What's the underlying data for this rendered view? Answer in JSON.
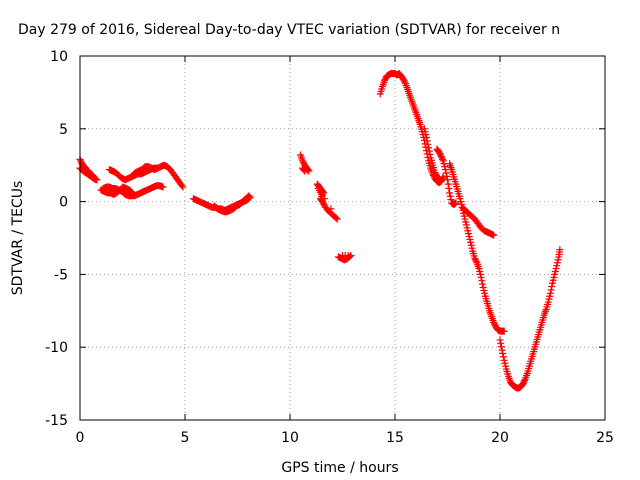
{
  "chart_data": {
    "type": "scatter",
    "title": "Day 279 of 2016, Sidereal Day-to-day VTEC variation (SDTVAR) for receiver n",
    "xlabel": "GPS time / hours",
    "ylabel": "SDTVAR / TECUs",
    "xlim": [
      0,
      25
    ],
    "ylim": [
      -15,
      10
    ],
    "xticks": [
      0,
      5,
      10,
      15,
      20,
      25
    ],
    "yticks": [
      -15,
      -10,
      -5,
      0,
      5,
      10
    ],
    "grid": true,
    "marker": "plus",
    "color": "#ff0000",
    "series": [
      {
        "segments": [
          [
            [
              0.0,
              2.9
            ],
            [
              0.1,
              2.6
            ],
            [
              0.2,
              2.4
            ],
            [
              0.3,
              2.2
            ],
            [
              0.4,
              2.1
            ],
            [
              0.5,
              1.9
            ],
            [
              0.6,
              1.8
            ],
            [
              0.7,
              1.6
            ],
            [
              0.8,
              1.5
            ]
          ],
          [
            [
              0.0,
              2.3
            ],
            [
              0.15,
              2.1
            ],
            [
              0.3,
              1.95
            ],
            [
              0.45,
              1.8
            ],
            [
              0.6,
              1.65
            ],
            [
              0.75,
              1.5
            ]
          ],
          [
            [
              1.0,
              0.8
            ],
            [
              1.15,
              0.7
            ],
            [
              1.3,
              0.6
            ],
            [
              1.45,
              0.6
            ],
            [
              1.6,
              0.5
            ],
            [
              1.75,
              0.6
            ],
            [
              1.9,
              0.8
            ],
            [
              2.05,
              1.0
            ],
            [
              2.2,
              0.9
            ],
            [
              2.35,
              0.8
            ],
            [
              2.5,
              0.6
            ]
          ],
          [
            [
              1.1,
              0.9
            ],
            [
              1.25,
              1.0
            ],
            [
              1.4,
              1.0
            ],
            [
              1.55,
              0.9
            ],
            [
              1.7,
              0.9
            ],
            [
              1.85,
              0.8
            ],
            [
              2.0,
              0.7
            ],
            [
              2.15,
              0.5
            ],
            [
              2.3,
              0.4
            ],
            [
              2.45,
              0.4
            ],
            [
              2.6,
              0.4
            ],
            [
              2.75,
              0.5
            ],
            [
              2.9,
              0.6
            ],
            [
              3.05,
              0.7
            ],
            [
              3.2,
              0.8
            ],
            [
              3.35,
              0.9
            ],
            [
              3.5,
              1.0
            ],
            [
              3.65,
              1.1
            ],
            [
              3.8,
              1.1
            ],
            [
              3.95,
              1.0
            ]
          ],
          [
            [
              1.4,
              2.2
            ],
            [
              1.55,
              2.1
            ],
            [
              1.7,
              2.0
            ],
            [
              1.85,
              1.8
            ],
            [
              2.0,
              1.6
            ],
            [
              2.15,
              1.5
            ],
            [
              2.3,
              1.6
            ],
            [
              2.45,
              1.7
            ],
            [
              2.6,
              1.8
            ],
            [
              2.75,
              1.9
            ],
            [
              2.9,
              1.9
            ],
            [
              3.05,
              2.0
            ],
            [
              3.2,
              2.1
            ],
            [
              3.35,
              2.2
            ],
            [
              3.5,
              2.3
            ],
            [
              3.65,
              2.3
            ]
          ],
          [
            [
              2.5,
              1.8
            ],
            [
              2.65,
              2.0
            ],
            [
              2.8,
              2.1
            ],
            [
              2.95,
              2.2
            ],
            [
              3.1,
              2.4
            ],
            [
              3.25,
              2.4
            ],
            [
              3.4,
              2.3
            ],
            [
              3.55,
              2.2
            ],
            [
              3.7,
              2.3
            ],
            [
              3.85,
              2.4
            ],
            [
              4.0,
              2.5
            ],
            [
              4.15,
              2.4
            ],
            [
              4.3,
              2.2
            ],
            [
              4.45,
              1.9
            ],
            [
              4.6,
              1.6
            ],
            [
              4.75,
              1.3
            ],
            [
              4.9,
              1.0
            ]
          ],
          [
            [
              5.4,
              0.2
            ],
            [
              5.55,
              0.1
            ],
            [
              5.7,
              0.0
            ],
            [
              5.85,
              -0.1
            ],
            [
              6.0,
              -0.2
            ],
            [
              6.15,
              -0.3
            ],
            [
              6.3,
              -0.4
            ],
            [
              6.45,
              -0.4
            ],
            [
              6.6,
              -0.5
            ],
            [
              6.75,
              -0.5
            ],
            [
              6.9,
              -0.6
            ],
            [
              7.05,
              -0.5
            ],
            [
              7.2,
              -0.4
            ],
            [
              7.35,
              -0.3
            ],
            [
              7.5,
              -0.2
            ],
            [
              7.65,
              -0.1
            ],
            [
              7.8,
              0.0
            ],
            [
              7.95,
              0.1
            ],
            [
              8.1,
              0.3
            ]
          ],
          [
            [
              6.4,
              -0.3
            ],
            [
              6.55,
              -0.5
            ],
            [
              6.7,
              -0.6
            ],
            [
              6.85,
              -0.7
            ],
            [
              7.0,
              -0.7
            ],
            [
              7.15,
              -0.6
            ],
            [
              7.3,
              -0.5
            ],
            [
              7.45,
              -0.3
            ],
            [
              7.6,
              -0.2
            ],
            [
              7.75,
              0.0
            ],
            [
              7.9,
              0.2
            ],
            [
              8.05,
              0.4
            ]
          ],
          [
            [
              10.5,
              3.2
            ],
            [
              10.6,
              2.8
            ],
            [
              10.7,
              2.5
            ],
            [
              10.8,
              2.3
            ],
            [
              10.9,
              2.1
            ],
            [
              10.6,
              2.3
            ],
            [
              10.7,
              2.1
            ]
          ],
          [
            [
              11.3,
              1.2
            ],
            [
              11.4,
              1.0
            ],
            [
              11.5,
              0.8
            ],
            [
              11.6,
              0.6
            ],
            [
              11.45,
              0.2
            ],
            [
              11.55,
              0.0
            ],
            [
              11.65,
              -0.3
            ],
            [
              11.8,
              -0.6
            ],
            [
              11.95,
              -0.8
            ],
            [
              12.1,
              -1.0
            ],
            [
              12.25,
              -1.2
            ],
            [
              11.35,
              0.9
            ],
            [
              11.5,
              0.5
            ]
          ],
          [
            [
              12.3,
              -3.8
            ],
            [
              12.45,
              -3.9
            ],
            [
              12.6,
              -4.0
            ],
            [
              12.75,
              -3.9
            ],
            [
              12.9,
              -3.7
            ],
            [
              12.5,
              -3.7
            ]
          ],
          [
            [
              14.3,
              7.4
            ],
            [
              14.4,
              7.9
            ],
            [
              14.5,
              8.3
            ],
            [
              14.6,
              8.6
            ],
            [
              14.7,
              8.7
            ],
            [
              14.8,
              8.8
            ],
            [
              14.9,
              8.8
            ],
            [
              15.0,
              8.8
            ],
            [
              15.1,
              8.7
            ],
            [
              15.2,
              8.8
            ],
            [
              15.3,
              8.6
            ],
            [
              15.4,
              8.4
            ],
            [
              15.5,
              8.1
            ],
            [
              15.6,
              7.7
            ],
            [
              15.7,
              7.3
            ],
            [
              15.8,
              6.9
            ],
            [
              15.9,
              6.5
            ],
            [
              16.0,
              6.1
            ],
            [
              16.1,
              5.7
            ],
            [
              16.2,
              5.3
            ],
            [
              16.3,
              4.8
            ],
            [
              16.4,
              4.2
            ],
            [
              16.5,
              3.5
            ],
            [
              16.6,
              2.8
            ],
            [
              16.7,
              2.3
            ],
            [
              16.8,
              1.9
            ],
            [
              16.9,
              1.6
            ],
            [
              17.0,
              1.4
            ],
            [
              17.1,
              1.3
            ],
            [
              17.2,
              1.4
            ],
            [
              17.3,
              1.7
            ]
          ],
          [
            [
              16.4,
              5.0
            ],
            [
              16.5,
              4.4
            ],
            [
              16.6,
              3.7
            ],
            [
              16.7,
              3.0
            ],
            [
              16.8,
              2.5
            ],
            [
              16.9,
              2.0
            ],
            [
              17.0,
              1.7
            ],
            [
              17.1,
              1.6
            ]
          ],
          [
            [
              17.0,
              3.6
            ],
            [
              17.1,
              3.4
            ],
            [
              17.2,
              3.1
            ],
            [
              17.3,
              2.8
            ],
            [
              17.4,
              2.2
            ],
            [
              17.5,
              1.5
            ],
            [
              17.6,
              0.6
            ],
            [
              17.7,
              -0.1
            ],
            [
              17.8,
              -0.2
            ],
            [
              17.9,
              -0.1
            ]
          ],
          [
            [
              17.6,
              2.6
            ],
            [
              17.7,
              2.2
            ],
            [
              17.8,
              1.7
            ],
            [
              17.9,
              1.2
            ],
            [
              18.0,
              0.7
            ],
            [
              18.1,
              0.2
            ],
            [
              18.2,
              -0.4
            ],
            [
              18.3,
              -1.0
            ],
            [
              18.4,
              -1.6
            ],
            [
              18.5,
              -2.2
            ],
            [
              18.6,
              -2.8
            ],
            [
              18.7,
              -3.4
            ],
            [
              18.8,
              -3.9
            ],
            [
              18.9,
              -4.2
            ],
            [
              19.0,
              -4.6
            ],
            [
              19.1,
              -5.2
            ],
            [
              19.2,
              -5.9
            ],
            [
              19.3,
              -6.5
            ],
            [
              19.4,
              -7.0
            ],
            [
              19.5,
              -7.5
            ],
            [
              19.6,
              -7.9
            ],
            [
              19.7,
              -8.3
            ],
            [
              19.8,
              -8.6
            ],
            [
              19.9,
              -8.8
            ],
            [
              20.0,
              -8.9
            ],
            [
              20.1,
              -8.9
            ],
            [
              20.2,
              -8.9
            ]
          ],
          [
            [
              18.2,
              -0.4
            ],
            [
              18.35,
              -0.6
            ],
            [
              18.5,
              -0.8
            ],
            [
              18.65,
              -1.0
            ],
            [
              18.8,
              -1.2
            ],
            [
              18.95,
              -1.5
            ],
            [
              19.1,
              -1.8
            ],
            [
              19.25,
              -2.0
            ],
            [
              19.4,
              -2.1
            ],
            [
              19.55,
              -2.2
            ],
            [
              19.7,
              -2.3
            ]
          ],
          [
            [
              20.0,
              -9.5
            ],
            [
              20.1,
              -10.2
            ],
            [
              20.2,
              -10.9
            ],
            [
              20.3,
              -11.5
            ],
            [
              20.4,
              -12.0
            ],
            [
              20.5,
              -12.4
            ],
            [
              20.6,
              -12.6
            ],
            [
              20.7,
              -12.7
            ],
            [
              20.8,
              -12.8
            ],
            [
              20.9,
              -12.8
            ],
            [
              21.0,
              -12.7
            ],
            [
              21.1,
              -12.5
            ],
            [
              21.2,
              -12.2
            ],
            [
              21.3,
              -11.8
            ],
            [
              21.4,
              -11.3
            ],
            [
              21.5,
              -10.8
            ],
            [
              21.6,
              -10.3
            ],
            [
              21.7,
              -9.8
            ],
            [
              21.8,
              -9.3
            ],
            [
              21.9,
              -8.8
            ],
            [
              22.0,
              -8.3
            ],
            [
              22.1,
              -7.8
            ],
            [
              22.2,
              -7.4
            ],
            [
              22.3,
              -6.9
            ],
            [
              22.4,
              -6.3
            ],
            [
              22.5,
              -5.6
            ],
            [
              22.6,
              -5.0
            ],
            [
              22.7,
              -4.4
            ],
            [
              22.8,
              -3.8
            ],
            [
              22.85,
              -3.3
            ]
          ]
        ]
      }
    ]
  }
}
